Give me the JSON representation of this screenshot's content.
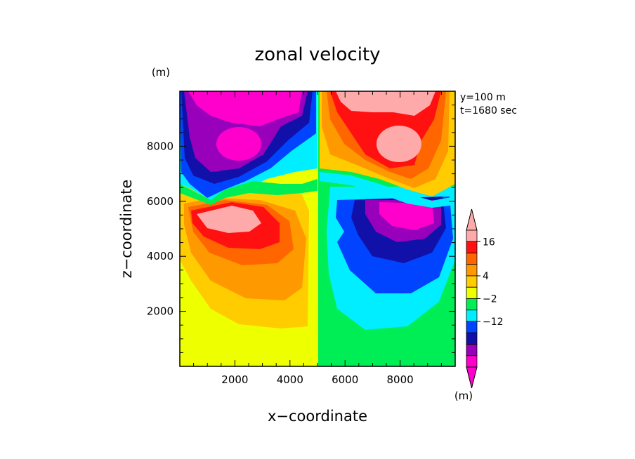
{
  "chart_data": {
    "type": "heatmap",
    "title": "zonal velocity",
    "xlabel": "x−coordinate",
    "ylabel": "z−coordinate",
    "x_unit": "(m)",
    "y_unit": "(m)",
    "xlim": [
      0,
      10000
    ],
    "ylim": [
      0,
      10000
    ],
    "xticks": [
      "2000",
      "4000",
      "6000",
      "8000"
    ],
    "yticks": [
      "2000",
      "4000",
      "6000",
      "8000"
    ],
    "xtick_values": [
      2000,
      4000,
      6000,
      8000
    ],
    "ytick_values": [
      2000,
      4000,
      6000,
      8000
    ],
    "annotations": [
      "y=100  m",
      "t=1680 sec"
    ],
    "legend_position": "right",
    "colorbar": {
      "labels": [
        "16",
        "4",
        "−2",
        "−12"
      ],
      "label_values": [
        16,
        4,
        -2,
        -12
      ],
      "colors": [
        "#ff00cc",
        "#9900bb",
        "#1111aa",
        "#0044ff",
        "#00eeff",
        "#00ee55",
        "#eeff00",
        "#ffcc00",
        "#ff9900",
        "#ff6600",
        "#ff1111",
        "#ffaaaa"
      ],
      "top_arrow_color": "#ffaaaa",
      "bottom_arrow_color": "#ff00cc"
    },
    "grid": false
  }
}
